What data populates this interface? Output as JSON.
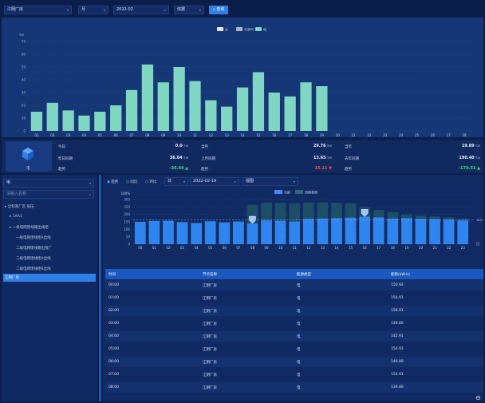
{
  "filters": {
    "site": "江阴厂房",
    "period": "月",
    "date": "2022-02",
    "range": "依据",
    "query_label": "查询"
  },
  "top_chart": {
    "legend": [
      "水",
      "天然气",
      "电"
    ],
    "ylabel": "kw",
    "icon_label": "电"
  },
  "stats": {
    "today_label": "今日",
    "today_value": "0.0",
    "today_unit": "kw",
    "yesterday_label": "昨日同期",
    "yesterday_value": "36.64",
    "yesterday_unit": "kw",
    "ratio1_label": "趋势",
    "ratio1_value": "-36.64 ▲",
    "month_label": "当月",
    "month_value": "29.76",
    "month_unit": "kw",
    "last_month_label": "上月同期",
    "last_month_value": "13.65",
    "last_month_unit": "kw",
    "ratio2_label": "趋势",
    "ratio2_value": "16.11 ▼",
    "year_label": "当年",
    "year_value": "19.89",
    "year_unit": "kw",
    "last_year_label": "去年同期",
    "last_year_value": "190.40",
    "last_year_unit": "kw",
    "ratio3_label": "趋势",
    "ratio3_value": "-170.51 ▲"
  },
  "tree": {
    "select": "电",
    "search_placeholder": "请输入名称",
    "items": [
      "全科南厂区 低压",
      "1AA1",
      "一级电网馈线箱出线柜",
      "一级电网馈线柜A出线",
      "二级电网馈线箱出线厂",
      "二级电网馈线柜A出线",
      "二级电网馈线柜B出线",
      "江阴厂房"
    ]
  },
  "sub_filters": {
    "opt1": "趋势",
    "opt2": "同比",
    "opt3": "环比",
    "period": "日",
    "date": "2022-02-19",
    "extra": "视图"
  },
  "bottom_chart": {
    "legend": [
      "当前",
      "同期参照"
    ],
    "ylabel": "100%",
    "max_label": "163.34",
    "unit_right": "日"
  },
  "table": {
    "headers": [
      "时间",
      "节点名称",
      "能源类型",
      "能耗(kW·h)"
    ],
    "rows": [
      [
        "00:00",
        "江阴厂房",
        "电",
        "150.92"
      ],
      [
        "01:00",
        "江阴厂房",
        "电",
        "156.91"
      ],
      [
        "02:00",
        "江阴厂房",
        "电",
        "158.91"
      ],
      [
        "03:00",
        "江阴厂房",
        "电",
        "148.86"
      ],
      [
        "04:00",
        "江阴厂房",
        "电",
        "142.91"
      ],
      [
        "05:00",
        "江阴厂房",
        "电",
        "154.91"
      ],
      [
        "06:00",
        "江阴厂房",
        "电",
        "146.89"
      ],
      [
        "07:00",
        "江阴厂房",
        "电",
        "152.91"
      ],
      [
        "08:00",
        "江阴厂房",
        "电",
        "139.89"
      ]
    ]
  },
  "chart_data": [
    {
      "type": "bar",
      "categories": [
        "01",
        "02",
        "03",
        "04",
        "05",
        "06",
        "07",
        "08",
        "09",
        "10",
        "11",
        "12",
        "13",
        "14",
        "15",
        "16",
        "17",
        "18",
        "19",
        "20",
        "21",
        "22",
        "23",
        "24",
        "25",
        "26",
        "27",
        "28"
      ],
      "series": [
        {
          "name": "电",
          "values": [
            15,
            22,
            16,
            12,
            15,
            20,
            32,
            52,
            38,
            50,
            39,
            24,
            19,
            34,
            46,
            30,
            27,
            38,
            35,
            0,
            0,
            0,
            0,
            0,
            0,
            0,
            0,
            0
          ]
        }
      ],
      "ylim": [
        0,
        70
      ],
      "yticks": [
        0,
        10,
        20,
        30,
        40,
        50,
        60,
        70
      ],
      "legend": "top-center",
      "grid": true
    },
    {
      "type": "bar",
      "categories": [
        "00",
        "01",
        "02",
        "03",
        "04",
        "05",
        "06",
        "07",
        "08",
        "09",
        "10",
        "11",
        "12",
        "13",
        "14",
        "15",
        "16",
        "17",
        "18",
        "19",
        "20",
        "21",
        "22",
        "23"
      ],
      "series": [
        {
          "name": "当前",
          "values": [
            150,
            156,
            158,
            148,
            142,
            154,
            146,
            152,
            139,
            160,
            158,
            152,
            170,
            172,
            175,
            178,
            185,
            180,
            172,
            175,
            170,
            168,
            165,
            160
          ]
        },
        {
          "name": "同期参照",
          "values": [
            150,
            156,
            158,
            148,
            142,
            154,
            146,
            152,
            265,
            280,
            278,
            275,
            280,
            282,
            278,
            275,
            250,
            230,
            215,
            200,
            192,
            186,
            180,
            172
          ]
        }
      ],
      "ylim": [
        0,
        300
      ],
      "yticks": [
        0,
        50,
        100,
        150,
        200,
        250,
        300
      ],
      "legend": "top-right",
      "grid": true
    }
  ]
}
